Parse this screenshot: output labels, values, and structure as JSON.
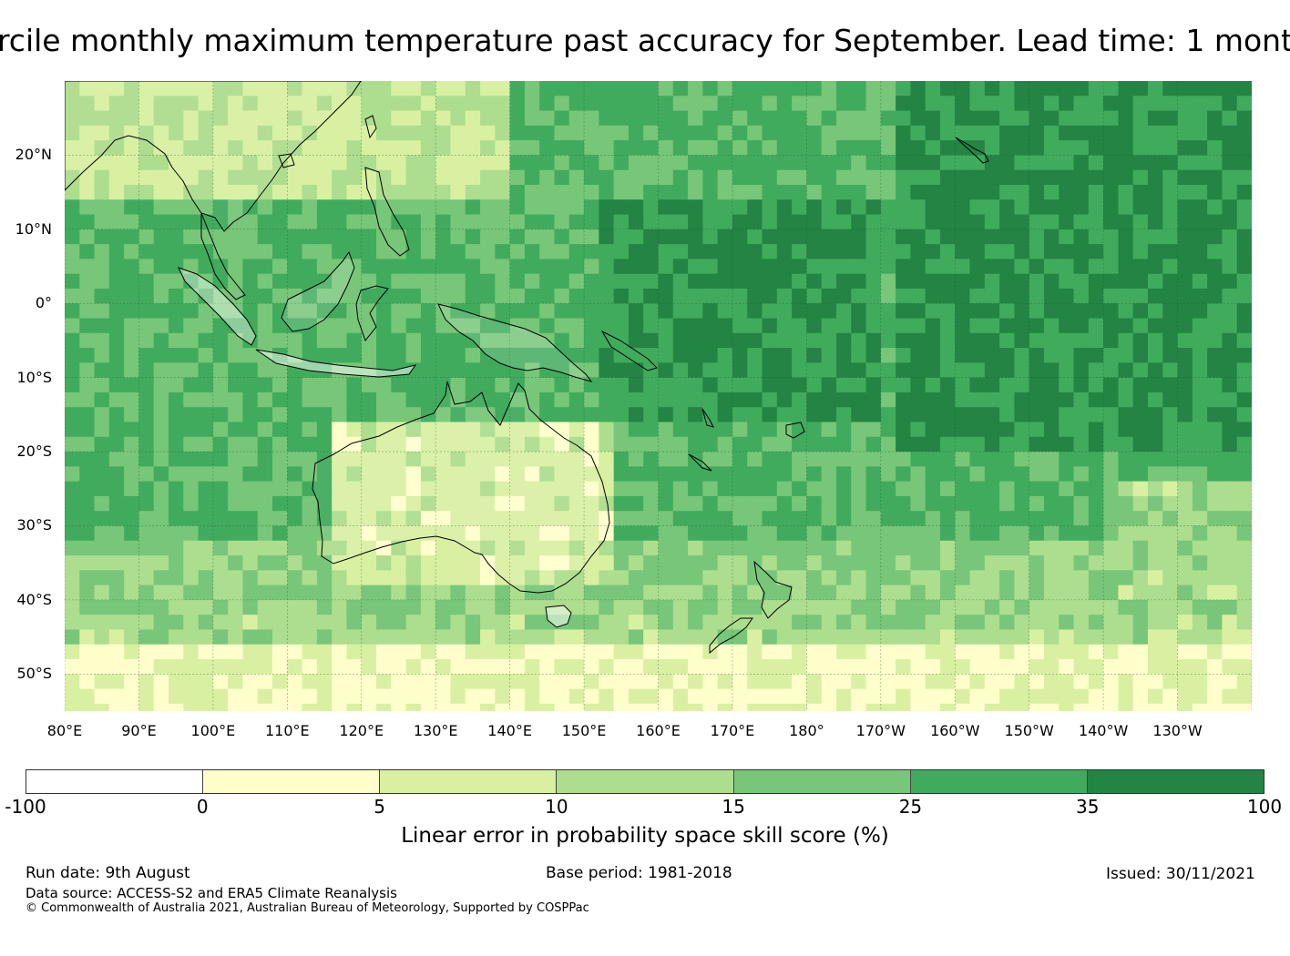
{
  "title": "rcile monthly maximum temperature past accuracy for September. Lead time: 1 mont",
  "map": {
    "lat_labels": [
      "20°N",
      "10°N",
      "0°",
      "10°S",
      "20°S",
      "30°S",
      "40°S",
      "50°S"
    ],
    "lon_labels": [
      "80°E",
      "90°E",
      "100°E",
      "110°E",
      "120°E",
      "130°E",
      "140°E",
      "150°E",
      "160°E",
      "170°E",
      "180°",
      "170°W",
      "160°W",
      "150°W",
      "140°W",
      "130°W"
    ],
    "lat_range": [
      -55,
      30
    ],
    "lon_range": [
      80,
      240
    ],
    "land_color": "#ffffff"
  },
  "colorbar": {
    "colors": [
      "#ffffff",
      "#ffffcc",
      "#d9f0a3",
      "#addd8e",
      "#78c679",
      "#41ab5d",
      "#238443"
    ],
    "ticks": [
      "-100",
      "0",
      "5",
      "10",
      "15",
      "25",
      "35",
      "100"
    ],
    "label": "Linear error in probability space skill score (%)"
  },
  "footer": {
    "run_date": "Run date: 9th August",
    "base_period": "Base period: 1981-2018",
    "issued": "Issued: 30/11/2021",
    "data_source": "Data source: ACCESS-S2 and ERA5 Climate Reanalysis",
    "copyright": "© Commonwealth of Australia 2021, Australian Bureau of Meteorology, Supported by COSPPac"
  }
}
